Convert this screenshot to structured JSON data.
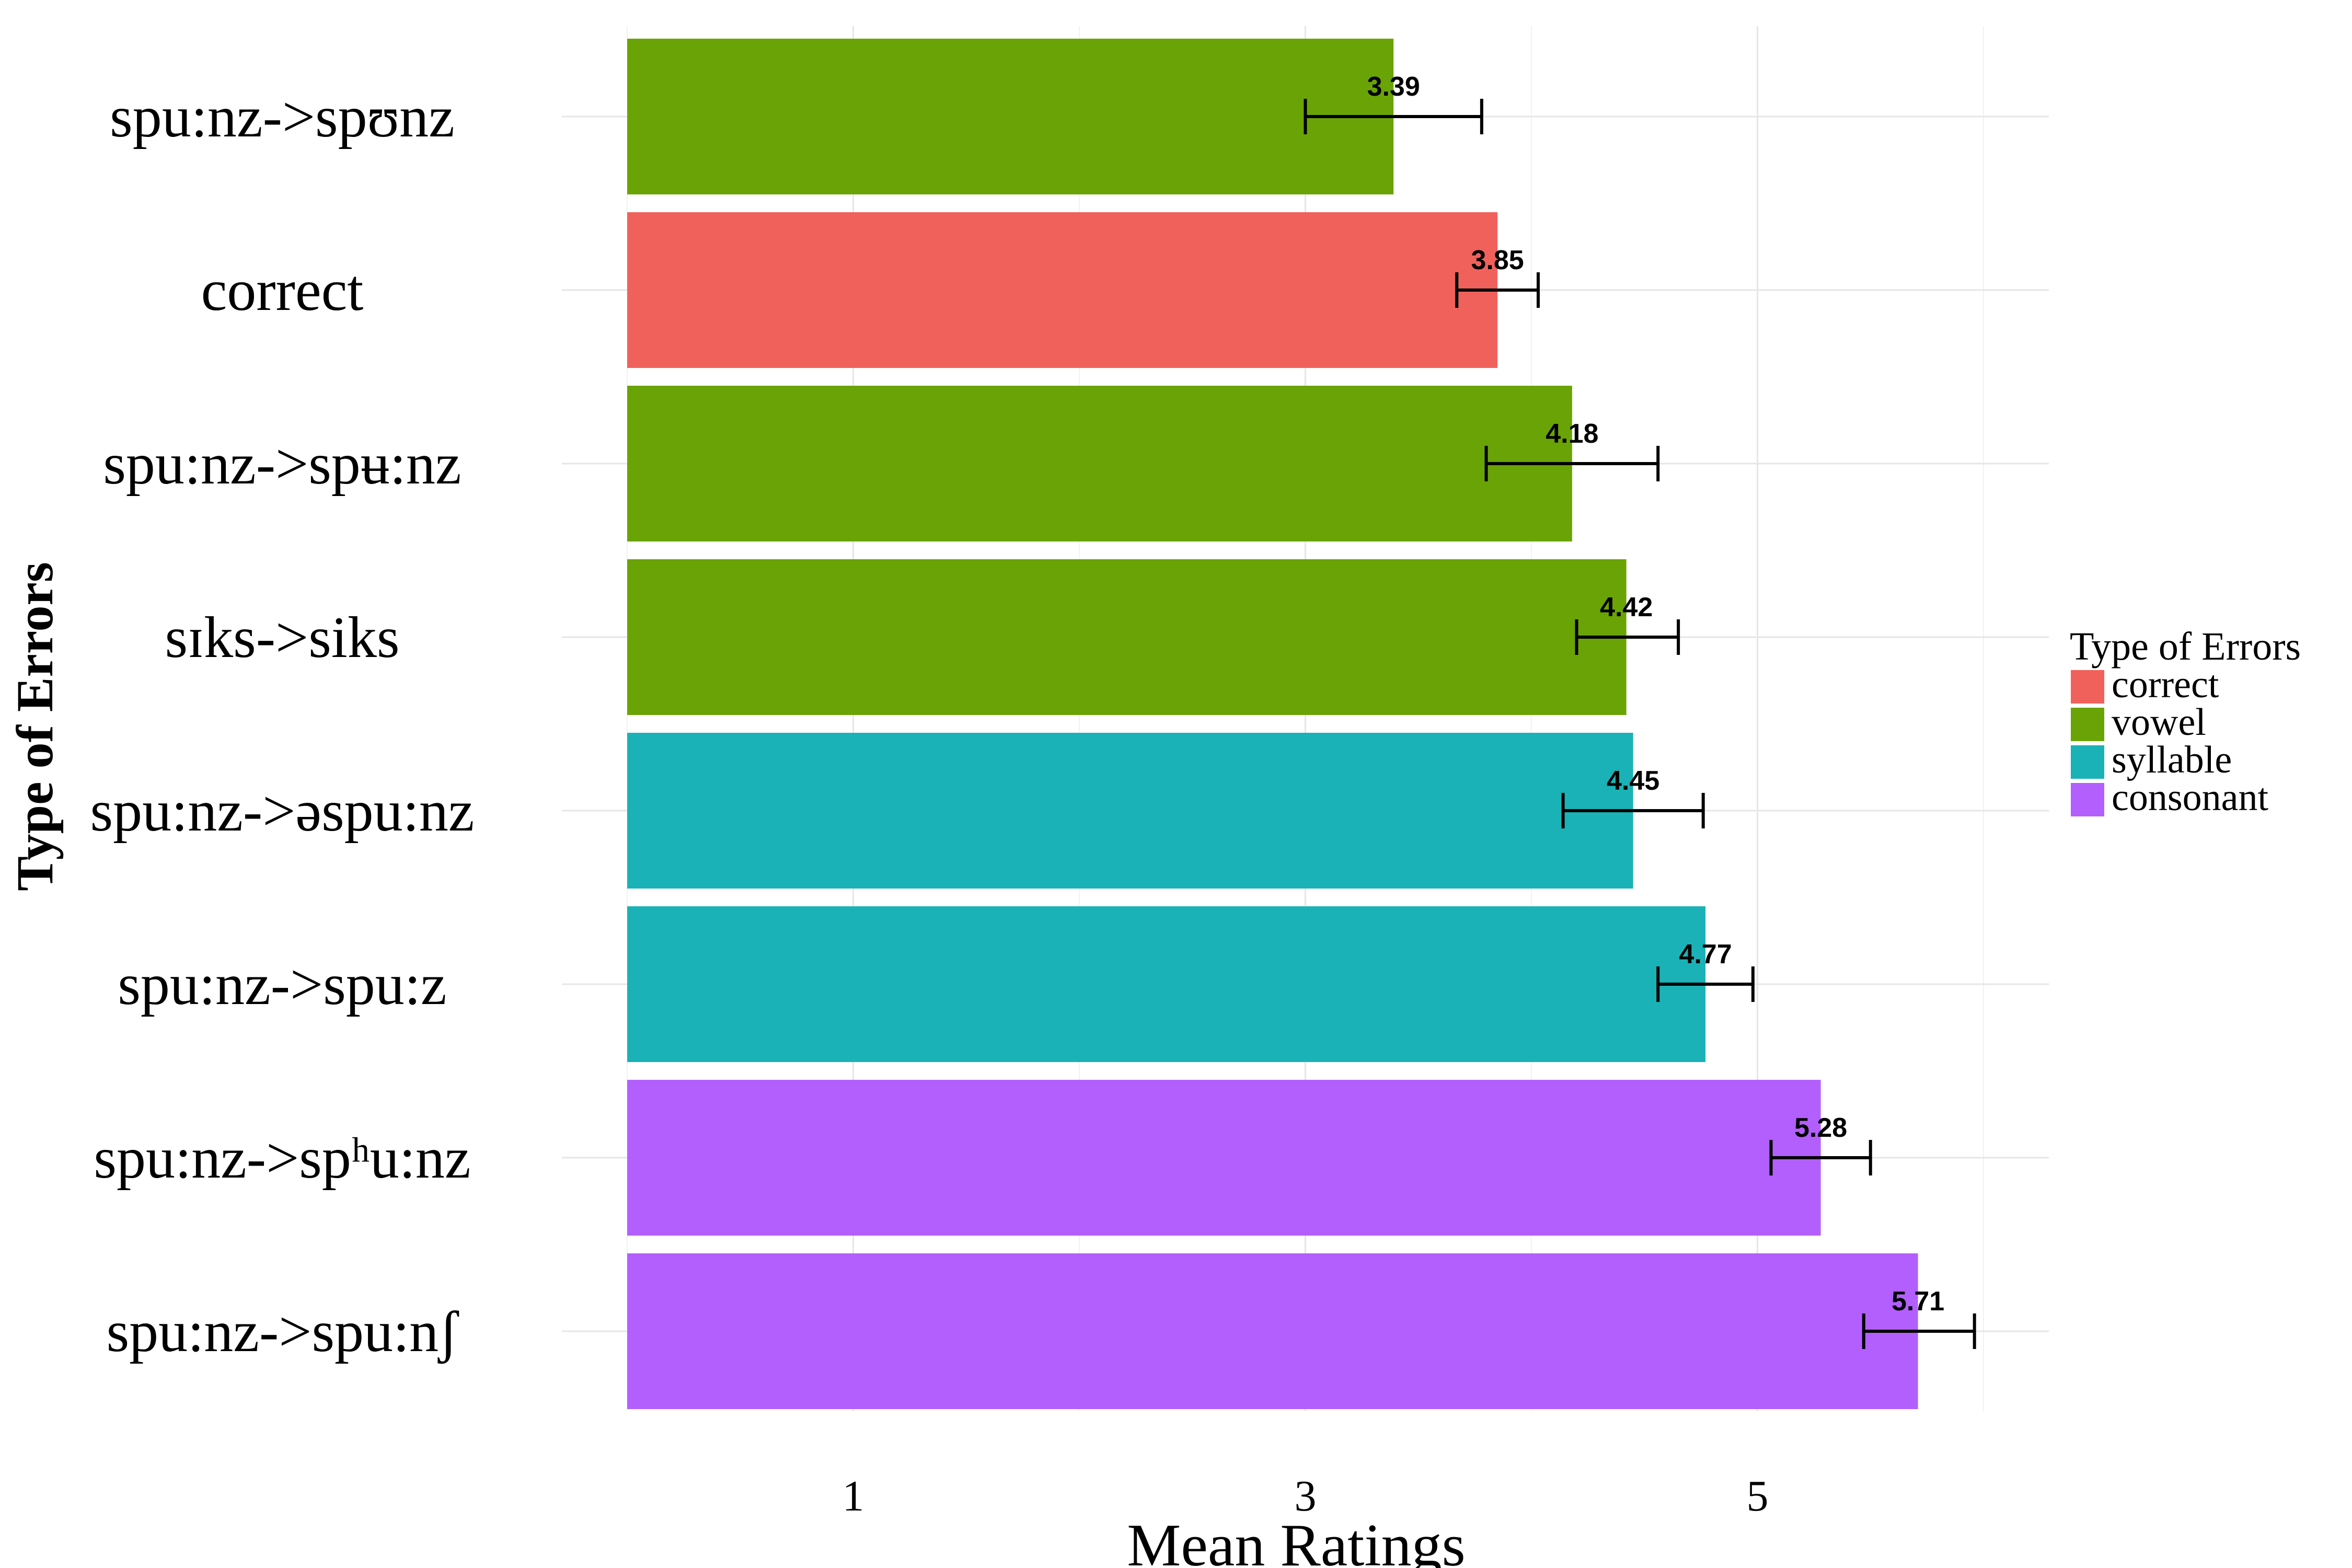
{
  "chart_data": {
    "type": "bar",
    "orientation": "horizontal",
    "xlabel": "Mean Ratings",
    "ylabel": "Type of Errors",
    "xlim": [
      0,
      6.4
    ],
    "x_ticks": [
      1,
      3,
      5
    ],
    "grid": true,
    "legend": {
      "title": "Type of Errors",
      "position": "right",
      "entries": [
        {
          "label": "correct",
          "color": "#F0615C"
        },
        {
          "label": "vowel",
          "color": "#6AA306"
        },
        {
          "label": "syllable",
          "color": "#1AB2B6"
        },
        {
          "label": "consonant",
          "color": "#B25FFE"
        }
      ]
    },
    "bars": [
      {
        "category": "spu:nz->spʊnz",
        "group": "vowel",
        "value": 3.39,
        "err_low": 3.0,
        "err_high": 3.78,
        "label": "3.39"
      },
      {
        "category": "correct",
        "group": "correct",
        "value": 3.85,
        "err_low": 3.67,
        "err_high": 4.03,
        "label": "3.85"
      },
      {
        "category": "spu:nz->spʉ:nz",
        "group": "vowel",
        "value": 4.18,
        "err_low": 3.8,
        "err_high": 4.56,
        "label": "4.18"
      },
      {
        "category": "sɪks->siks",
        "group": "vowel",
        "value": 4.42,
        "err_low": 4.2,
        "err_high": 4.65,
        "label": "4.42"
      },
      {
        "category": "spu:nz->əspu:nz",
        "group": "syllable",
        "value": 4.45,
        "err_low": 4.14,
        "err_high": 4.76,
        "label": "4.45"
      },
      {
        "category": "spu:nz->spu:z",
        "group": "syllable",
        "value": 4.77,
        "err_low": 4.56,
        "err_high": 4.98,
        "label": "4.77"
      },
      {
        "category": "spu:nz->spʰu:nz",
        "group": "consonant",
        "value": 5.28,
        "err_low": 5.06,
        "err_high": 5.5,
        "label": "5.28"
      },
      {
        "category": "spu:nz->spu:nʃ",
        "group": "consonant",
        "value": 5.71,
        "err_low": 5.47,
        "err_high": 5.96,
        "label": "5.71"
      }
    ]
  }
}
